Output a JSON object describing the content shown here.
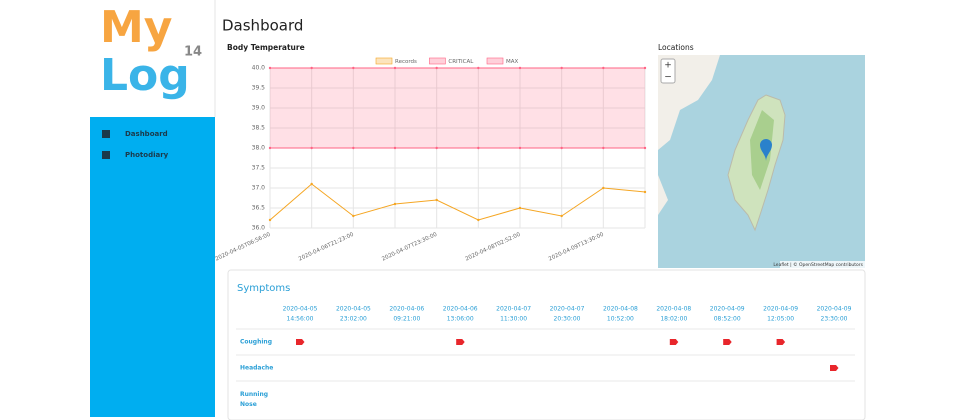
{
  "sidebar": {
    "logo": {
      "word1": "My",
      "word2": "Log",
      "number": "14"
    },
    "menu": [
      "Dashboard",
      "Photodiary"
    ]
  },
  "page_title": "Dashboard",
  "chart_data": {
    "type": "line",
    "title": "Body Temperature",
    "categories": [
      "2020-04-05T06:56:00",
      null,
      "2020-04-06T21:23:00",
      null,
      "2020-04-07T23:30:00",
      null,
      "2020-04-08T02:52:00",
      null,
      "2020-04-09T13:30:00",
      null
    ],
    "series": [
      {
        "name": "Records",
        "color": "#f5a623",
        "values": [
          36.2,
          37.1,
          36.3,
          36.6,
          36.7,
          36.2,
          36.5,
          36.3,
          37.0,
          36.9
        ]
      },
      {
        "name": "CRITICAL",
        "color": "#ff6384",
        "values": [
          38,
          38,
          38,
          38,
          38,
          38,
          38,
          38,
          38,
          38
        ]
      },
      {
        "name": "MAX",
        "color": "#ff6384",
        "values": [
          40,
          40,
          40,
          40,
          40,
          40,
          40,
          40,
          40,
          40
        ]
      }
    ],
    "ylim": [
      36,
      40
    ],
    "yticks": [
      {
        "value": 36,
        "label": "36.0"
      },
      36.5,
      {
        "value": 37,
        "label": "37.0"
      },
      37.5,
      {
        "value": 38,
        "label": "38.0"
      },
      38.5,
      {
        "value": 39,
        "label": "39.0"
      },
      39.5,
      {
        "value": 40,
        "label": "40.0"
      }
    ],
    "grid": true,
    "legend": "top"
  },
  "map": {
    "title": "Locations",
    "zoom_in": "+",
    "zoom_out": "−",
    "attribution": "Leaflet | © OpenStreetMap contributors"
  },
  "symptoms": {
    "title": "Symptoms",
    "columns": [
      {
        "date": "2020-04-05",
        "time": "14:56:00"
      },
      {
        "date": "2020-04-05",
        "time": "23:02:00"
      },
      {
        "date": "2020-04-06",
        "time": "09:21:00"
      },
      {
        "date": "2020-04-06",
        "time": "13:06:00"
      },
      {
        "date": "2020-04-07",
        "time": "11:30:00"
      },
      {
        "date": "2020-04-07",
        "time": "20:30:00"
      },
      {
        "date": "2020-04-08",
        "time": "10:52:00"
      },
      {
        "date": "2020-04-08",
        "time": "18:02:00"
      },
      {
        "date": "2020-04-09",
        "time": "08:52:00"
      },
      {
        "date": "2020-04-09",
        "time": "12:05:00"
      },
      {
        "date": "2020-04-09",
        "time": "23:30:00"
      }
    ],
    "rows": [
      {
        "name": "Coughing",
        "columns": [
          0,
          3,
          7,
          8,
          9
        ]
      },
      {
        "name": "Headache",
        "columns": [
          10
        ]
      },
      {
        "name": "Running Nose",
        "columns": []
      }
    ]
  }
}
